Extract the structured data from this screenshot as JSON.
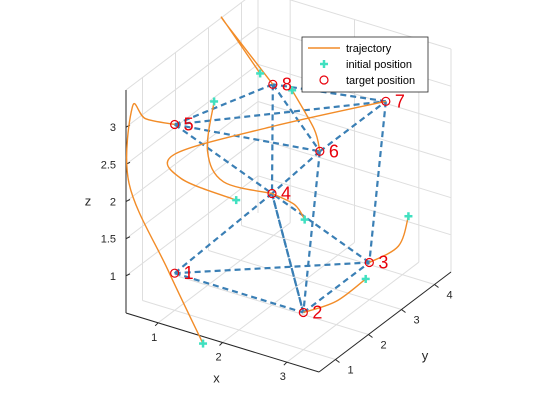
{
  "chart_data": {
    "type": "3d-line-scatter",
    "xlabel": "x",
    "ylabel": "y",
    "zlabel": "z",
    "xlim": [
      0.5,
      3.5
    ],
    "ylim": [
      0.5,
      4.5
    ],
    "zlim": [
      0.5,
      3.5
    ],
    "xticks": [
      "1",
      "2",
      "3"
    ],
    "yticks": [
      "1",
      "2",
      "3",
      "4"
    ],
    "zticks": [
      "1",
      "1.5",
      "2",
      "2.5",
      "3"
    ],
    "grid": true,
    "legend": {
      "placement": "top-right",
      "entries": [
        {
          "label": "trajectory",
          "color": "#f28c28",
          "marker": "line"
        },
        {
          "label": "initial position",
          "color": "#40e0c0",
          "marker": "plus"
        },
        {
          "label": "target position",
          "color": "#e8000b",
          "marker": "circle"
        }
      ]
    },
    "colors": {
      "trajectory": "#f28c28",
      "initial": "#40e0c0",
      "target": "#e8000b",
      "edges": "#3a7fb5"
    },
    "targets": [
      {
        "label": "1",
        "x": 1.0,
        "y": 1.0,
        "z": 1.0
      },
      {
        "label": "2",
        "x": 3.0,
        "y": 1.0,
        "z": 1.0
      },
      {
        "label": "3",
        "x": 3.0,
        "y": 3.0,
        "z": 1.0
      },
      {
        "label": "4",
        "x": 2.0,
        "y": 2.0,
        "z": 2.0
      },
      {
        "label": "5",
        "x": 1.0,
        "y": 1.0,
        "z": 3.0
      },
      {
        "label": "6",
        "x": 3.0,
        "y": 1.5,
        "z": 3.0
      },
      {
        "label": "7",
        "x": 3.0,
        "y": 3.5,
        "z": 3.0
      },
      {
        "label": "8",
        "x": 1.5,
        "y": 3.0,
        "z": 3.0
      }
    ],
    "initial_positions": [
      {
        "x": 1.8,
        "y": 0.3,
        "z": 0.5
      },
      {
        "x": 3.2,
        "y": 2.5,
        "z": 1.0
      },
      {
        "x": 3.3,
        "y": 3.6,
        "z": 1.5
      },
      {
        "x": 2.2,
        "y": 2.6,
        "z": 1.5
      },
      {
        "x": 1.7,
        "y": 1.5,
        "z": 2.0
      },
      {
        "x": 1.1,
        "y": 2.0,
        "z": 3.0
      },
      {
        "x": 1.2,
        "y": 3.2,
        "z": 3.0
      },
      {
        "x": 1.8,
        "y": 3.0,
        "z": 3.0
      }
    ],
    "edges": [
      [
        1,
        2
      ],
      [
        2,
        3
      ],
      [
        1,
        3
      ],
      [
        1,
        4
      ],
      [
        2,
        4
      ],
      [
        3,
        4
      ],
      [
        5,
        6
      ],
      [
        6,
        7
      ],
      [
        5,
        7
      ],
      [
        5,
        8
      ],
      [
        7,
        8
      ],
      [
        5,
        4
      ],
      [
        8,
        4
      ],
      [
        6,
        2
      ],
      [
        6,
        4
      ],
      [
        7,
        3
      ],
      [
        8,
        6
      ],
      [
        4,
        2
      ]
    ],
    "trajectories": [
      [
        [
          1.8,
          0.3,
          0.5
        ],
        [
          1.3,
          0.2,
          1.4
        ],
        [
          0.7,
          0.2,
          2.4
        ],
        [
          0.6,
          0.5,
          3.3
        ],
        [
          0.7,
          0.7,
          3.1
        ],
        [
          1.0,
          1.0,
          3.0
        ]
      ],
      [
        [
          3.2,
          2.5,
          1.0
        ],
        [
          3.2,
          1.6,
          1.0
        ],
        [
          3.0,
          1.0,
          1.0
        ]
      ],
      [
        [
          3.3,
          3.6,
          1.5
        ],
        [
          3.3,
          3.3,
          1.2
        ],
        [
          3.0,
          3.0,
          1.0
        ]
      ],
      [
        [
          2.2,
          2.6,
          1.5
        ],
        [
          2.2,
          2.3,
          1.8
        ],
        [
          2.0,
          2.0,
          2.0
        ]
      ],
      [
        [
          1.7,
          1.5,
          2.0
        ],
        [
          1.1,
          1.0,
          2.3
        ],
        [
          1.0,
          1.0,
          2.6
        ],
        [
          2.0,
          2.0,
          2.9
        ],
        [
          3.0,
          3.5,
          3.0
        ]
      ],
      [
        [
          1.1,
          2.0,
          3.0
        ],
        [
          1.1,
          1.8,
          2.4
        ],
        [
          1.4,
          1.7,
          2.1
        ],
        [
          2.0,
          2.0,
          2.0
        ]
      ],
      [
        [
          1.2,
          3.2,
          3.0
        ],
        [
          0.6,
          3.3,
          3.5
        ],
        [
          0.7,
          3.2,
          3.5
        ],
        [
          1.5,
          3.0,
          3.0
        ]
      ],
      [
        [
          1.8,
          3.0,
          3.0
        ],
        [
          2.5,
          2.3,
          2.9
        ],
        [
          3.0,
          1.5,
          3.0
        ]
      ]
    ]
  }
}
